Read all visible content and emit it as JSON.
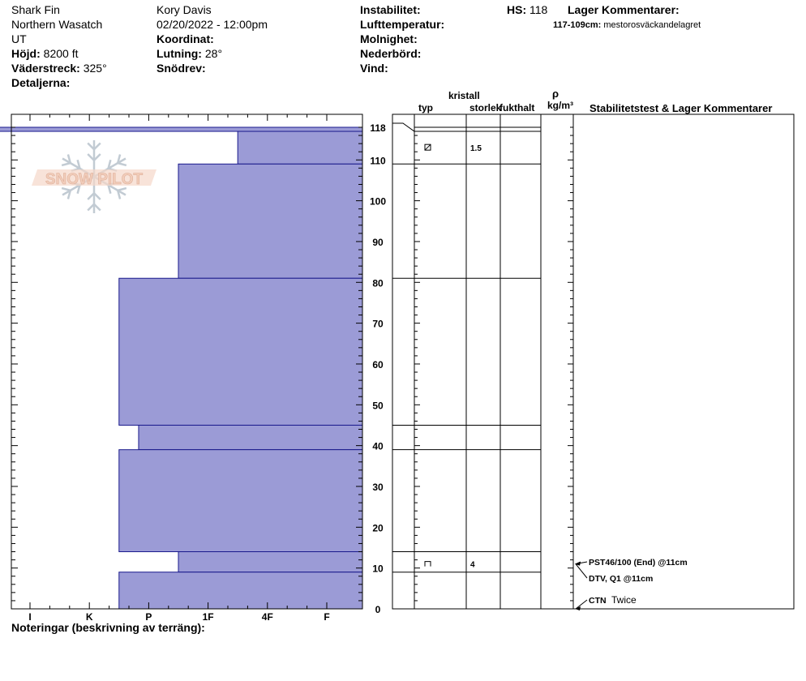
{
  "header": {
    "site": "Shark Fin",
    "range": "Northern Wasatch",
    "state": "UT",
    "elevation_label": "Höjd:",
    "elevation": "8200 ft",
    "aspect_label": "Väderstreck:",
    "aspect": "325°",
    "details_label": "Detaljerna:",
    "observer": "Kory Davis",
    "datetime": "02/20/2022 - 12:00pm",
    "coord_label": "Koordinat:",
    "slope_label": "Lutning:",
    "slope": "28°",
    "drift_label": "Snödrev:",
    "instability_label": "Instabilitet:",
    "airtemp_label": "Lufttemperatur:",
    "clouds_label": "Molnighet:",
    "precip_label": "Nederbörd:",
    "wind_label": "Vind:",
    "hs_label": "HS:",
    "hs": "118",
    "layer_comments_label": "Lager Kommentarer:",
    "layer_comment_range": "117-109cm:",
    "layer_comment_text": "mestorosväckandelagret"
  },
  "columns": {
    "crystal": "kristall",
    "type": "typ",
    "size": "storlek",
    "moisture": "fukthalt",
    "rho": "ρ",
    "density_unit": "kg/m³",
    "stability": "Stabilitetstest & Lager Kommentarer"
  },
  "notes_label": "Noteringar (beskrivning av terräng):",
  "logo_text": "SNOW PILOT",
  "chart_data": {
    "type": "bar",
    "title": "",
    "orientation": "horizontal",
    "xlabel": "",
    "ylabel": "",
    "ylim": [
      0,
      118
    ],
    "hardness_scale": [
      "I",
      "K",
      "P",
      "1F",
      "4F",
      "F"
    ],
    "y_ticks": [
      0,
      10,
      20,
      30,
      40,
      50,
      60,
      70,
      80,
      90,
      100,
      110,
      118
    ],
    "layers": [
      {
        "top": 118,
        "bottom": 117,
        "hardness_index": -1.0
      },
      {
        "top": 117,
        "bottom": 109,
        "hardness_index": 3.5
      },
      {
        "top": 109,
        "bottom": 81,
        "hardness_index": 2.5
      },
      {
        "top": 81,
        "bottom": 45,
        "hardness_index": 1.5
      },
      {
        "top": 45,
        "bottom": 39,
        "hardness_index": 1.83
      },
      {
        "top": 39,
        "bottom": 14,
        "hardness_index": 1.5
      },
      {
        "top": 14,
        "bottom": 9,
        "hardness_index": 2.5
      },
      {
        "top": 9,
        "bottom": 0,
        "hardness_index": 1.5
      }
    ],
    "grain_rows": [
      {
        "height": 113,
        "grain_type": "faceted-rounded-icon",
        "size": "1.5"
      },
      {
        "height": 11,
        "grain_type": "depth-hoar-icon",
        "size": "4"
      }
    ],
    "stability_tests": [
      {
        "height": 11,
        "label": "PST46/100 (End) @11cm"
      },
      {
        "height": 11,
        "label": "DTV, Q1 @11cm"
      },
      {
        "height": 0,
        "label": "CTN",
        "note": "Twice"
      }
    ],
    "colors": {
      "fill": "#9b9bd6",
      "edge": "#1a1a8c",
      "logo": "#e8b9a0"
    }
  }
}
